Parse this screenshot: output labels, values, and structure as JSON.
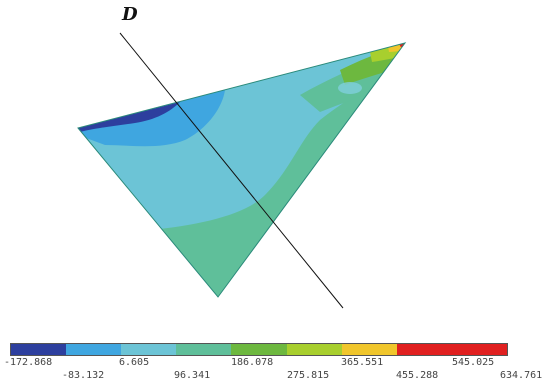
{
  "diagram": {
    "section_label": "D"
  },
  "legend": {
    "colors": [
      "#2d3f9e",
      "#3fa6e0",
      "#6cc4d6",
      "#5fbf9a",
      "#6db83f",
      "#a8cf2e",
      "#f0c62c",
      "#e02020"
    ],
    "tick_labels": [
      "-172.868",
      "-83.132",
      "6.605",
      "96.341",
      "186.078",
      "275.815",
      "365.551",
      "455.288",
      "545.025",
      "634.761"
    ]
  }
}
